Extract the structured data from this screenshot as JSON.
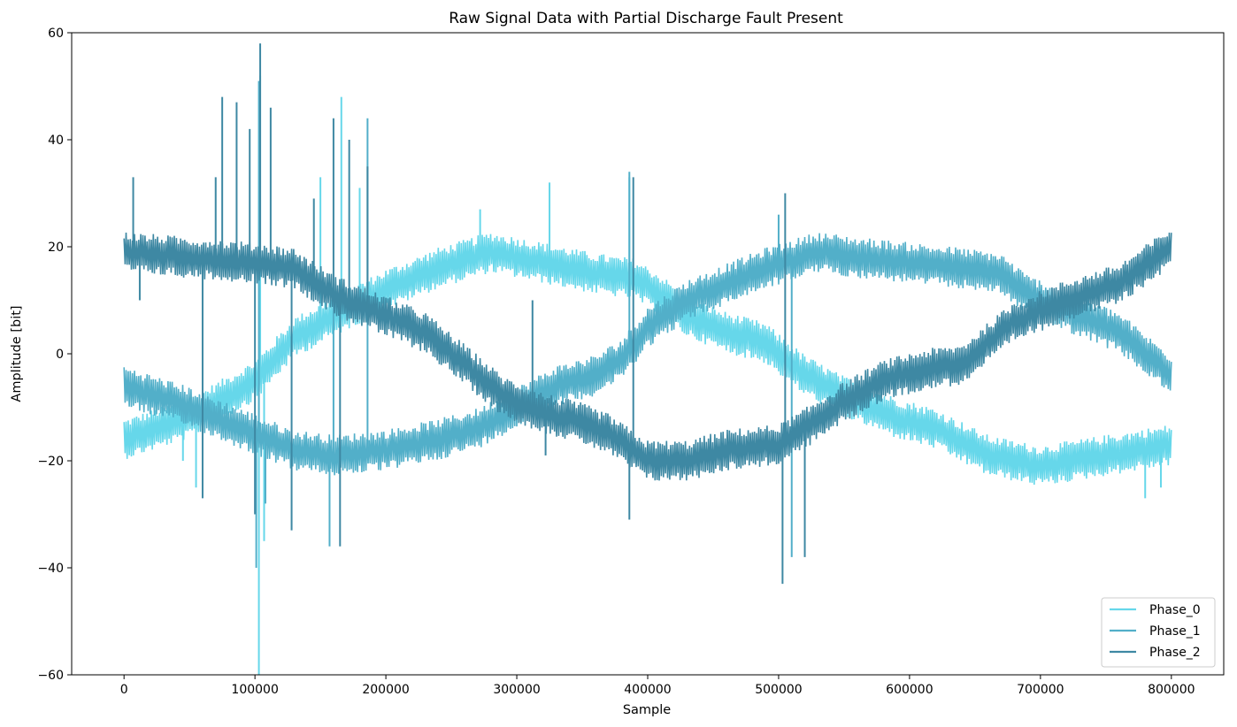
{
  "chart_data": {
    "type": "line",
    "title": "Raw Signal Data with Partial Discharge Fault Present",
    "xlabel": "Sample",
    "ylabel": "Amplitude [bit]",
    "xlim": [
      -40000,
      840000
    ],
    "ylim": [
      -60,
      60
    ],
    "xticks": [
      0,
      100000,
      200000,
      300000,
      400000,
      500000,
      600000,
      700000,
      800000
    ],
    "xtick_labels": [
      "0",
      "100000",
      "200000",
      "300000",
      "400000",
      "500000",
      "600000",
      "700000",
      "800000"
    ],
    "yticks": [
      -60,
      -40,
      -20,
      0,
      20,
      40,
      60
    ],
    "ytick_labels": [
      "−60",
      "−40",
      "−20",
      "0",
      "20",
      "40",
      "60"
    ],
    "legend_position": "bottom-right",
    "noise_band": 3.5,
    "series": [
      {
        "name": "Phase_0",
        "color": "#66d7ea",
        "baseline": [
          [
            0,
            -16
          ],
          [
            50000,
            -12
          ],
          [
            100000,
            -5
          ],
          [
            130000,
            3
          ],
          [
            160000,
            7
          ],
          [
            200000,
            12
          ],
          [
            240000,
            16
          ],
          [
            280000,
            19
          ],
          [
            320000,
            17
          ],
          [
            360000,
            15
          ],
          [
            390000,
            14
          ],
          [
            410000,
            11
          ],
          [
            430000,
            7
          ],
          [
            460000,
            4
          ],
          [
            490000,
            2
          ],
          [
            520000,
            -4
          ],
          [
            550000,
            -8
          ],
          [
            590000,
            -12
          ],
          [
            620000,
            -14
          ],
          [
            660000,
            -19
          ],
          [
            700000,
            -21
          ],
          [
            750000,
            -19
          ],
          [
            800000,
            -17
          ]
        ],
        "spikes": [
          [
            103000,
            -60
          ],
          [
            104000,
            52
          ],
          [
            107000,
            -35
          ],
          [
            150000,
            33
          ],
          [
            166000,
            48
          ],
          [
            180000,
            31
          ],
          [
            55000,
            -25
          ],
          [
            45000,
            -20
          ],
          [
            272000,
            27
          ],
          [
            325000,
            32
          ],
          [
            386000,
            33
          ],
          [
            780000,
            -27
          ],
          [
            792000,
            -25
          ]
        ]
      },
      {
        "name": "Phase_1",
        "color": "#52afc9",
        "baseline": [
          [
            0,
            -6
          ],
          [
            50000,
            -10
          ],
          [
            100000,
            -15
          ],
          [
            130000,
            -18
          ],
          [
            160000,
            -19
          ],
          [
            200000,
            -18
          ],
          [
            240000,
            -16
          ],
          [
            270000,
            -14
          ],
          [
            300000,
            -10
          ],
          [
            330000,
            -6
          ],
          [
            360000,
            -4
          ],
          [
            380000,
            -1
          ],
          [
            400000,
            5
          ],
          [
            430000,
            10
          ],
          [
            460000,
            13
          ],
          [
            490000,
            16
          ],
          [
            530000,
            19
          ],
          [
            560000,
            18
          ],
          [
            600000,
            17
          ],
          [
            640000,
            16
          ],
          [
            670000,
            15
          ],
          [
            690000,
            11
          ],
          [
            720000,
            8
          ],
          [
            760000,
            4
          ],
          [
            800000,
            -4
          ]
        ],
        "spikes": [
          [
            101000,
            -40
          ],
          [
            103000,
            51
          ],
          [
            157000,
            -36
          ],
          [
            186000,
            44
          ],
          [
            386000,
            34
          ],
          [
            500000,
            26
          ],
          [
            510000,
            -38
          ],
          [
            108000,
            -28
          ],
          [
            160000,
            12
          ]
        ]
      },
      {
        "name": "Phase_2",
        "color": "#3e88a3",
        "baseline": [
          [
            0,
            19
          ],
          [
            50000,
            18
          ],
          [
            100000,
            17
          ],
          [
            130000,
            16
          ],
          [
            160000,
            11
          ],
          [
            200000,
            7
          ],
          [
            230000,
            4
          ],
          [
            260000,
            -2
          ],
          [
            290000,
            -8
          ],
          [
            320000,
            -11
          ],
          [
            350000,
            -13
          ],
          [
            370000,
            -15
          ],
          [
            400000,
            -20
          ],
          [
            430000,
            -20
          ],
          [
            460000,
            -18
          ],
          [
            500000,
            -17
          ],
          [
            520000,
            -14
          ],
          [
            550000,
            -9
          ],
          [
            580000,
            -5
          ],
          [
            610000,
            -3
          ],
          [
            640000,
            -2
          ],
          [
            660000,
            2
          ],
          [
            680000,
            6
          ],
          [
            720000,
            10
          ],
          [
            760000,
            13
          ],
          [
            800000,
            20
          ]
        ],
        "spikes": [
          [
            104000,
            58
          ],
          [
            100000,
            -30
          ],
          [
            96000,
            42
          ],
          [
            112000,
            46
          ],
          [
            75000,
            48
          ],
          [
            86000,
            47
          ],
          [
            60000,
            -27
          ],
          [
            70000,
            33
          ],
          [
            145000,
            29
          ],
          [
            160000,
            44
          ],
          [
            172000,
            40
          ],
          [
            165000,
            -36
          ],
          [
            186000,
            35
          ],
          [
            322000,
            -19
          ],
          [
            312000,
            10
          ],
          [
            386000,
            -31
          ],
          [
            389000,
            33
          ],
          [
            503000,
            -43
          ],
          [
            505000,
            30
          ],
          [
            520000,
            -38
          ],
          [
            7000,
            33
          ],
          [
            12000,
            10
          ],
          [
            128000,
            -33
          ]
        ]
      }
    ]
  }
}
